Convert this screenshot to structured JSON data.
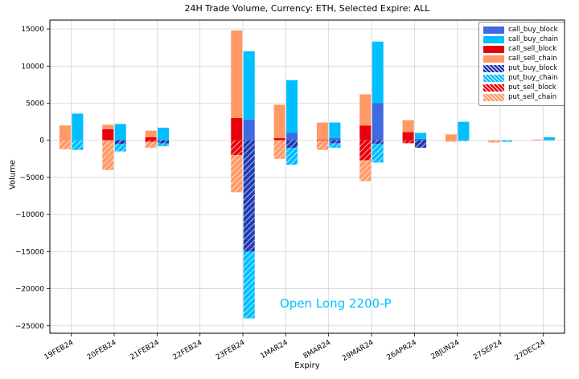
{
  "chart_data": {
    "type": "bar",
    "title": "24H Trade Volume, Currency: ETH, Selected Expire: ALL",
    "xlabel": "Expiry",
    "ylabel": "Volume",
    "ylim": [
      -26000,
      16200
    ],
    "yticks": [
      15000,
      10000,
      5000,
      0,
      -5000,
      -10000,
      -15000,
      -20000,
      -25000
    ],
    "grid": true,
    "legend_position": "upper right",
    "categories": [
      "19FEB24",
      "20FEB24",
      "21FEB24",
      "22FEB24",
      "23FEB24",
      "1MAR24",
      "8MAR24",
      "29MAR24",
      "26APR24",
      "28JUN24",
      "27SEP24",
      "27DEC24"
    ],
    "series": [
      {
        "name": "call_buy_block",
        "color": "#4169e1",
        "hatch": false,
        "bar": "buy",
        "values": [
          0,
          0,
          0,
          0,
          2800,
          1000,
          300,
          5000,
          200,
          100,
          0,
          0
        ]
      },
      {
        "name": "call_buy_chain",
        "color": "#00bfff",
        "hatch": false,
        "bar": "buy",
        "values": [
          3600,
          2200,
          1700,
          0,
          9200,
          7100,
          2100,
          8300,
          800,
          2400,
          0,
          400
        ]
      },
      {
        "name": "call_sell_block",
        "color": "#e8000d",
        "hatch": false,
        "bar": "sell",
        "values": [
          0,
          1500,
          400,
          0,
          3000,
          300,
          100,
          2000,
          1100,
          0,
          0,
          0
        ]
      },
      {
        "name": "call_sell_chain",
        "color": "#ff9966",
        "hatch": false,
        "bar": "sell",
        "values": [
          2000,
          600,
          900,
          0,
          11800,
          4500,
          2300,
          4200,
          1600,
          800,
          0,
          100
        ]
      },
      {
        "name": "put_buy_block",
        "color": "#1f3bb3",
        "hatch": true,
        "bar": "buy",
        "values": [
          0,
          -500,
          -400,
          0,
          -15000,
          -1000,
          -400,
          -500,
          -1000,
          0,
          0,
          0
        ]
      },
      {
        "name": "put_buy_chain",
        "color": "#00bfff",
        "hatch": true,
        "bar": "buy",
        "values": [
          -1300,
          -1000,
          -400,
          0,
          -9000,
          -2300,
          -600,
          -2500,
          0,
          -100,
          -200,
          0
        ]
      },
      {
        "name": "put_sell_block",
        "color": "#e8000d",
        "hatch": true,
        "bar": "sell",
        "values": [
          0,
          0,
          -200,
          0,
          -2000,
          0,
          0,
          -2700,
          -400,
          0,
          0,
          0
        ]
      },
      {
        "name": "put_sell_chain",
        "color": "#ff9966",
        "hatch": true,
        "bar": "sell",
        "values": [
          -1200,
          -4000,
          -800,
          0,
          -5000,
          -2500,
          -1300,
          -2800,
          0,
          -200,
          -300,
          0
        ]
      }
    ],
    "annotation": {
      "text": "Open Long 2200-P",
      "color": "#00bfff"
    }
  }
}
